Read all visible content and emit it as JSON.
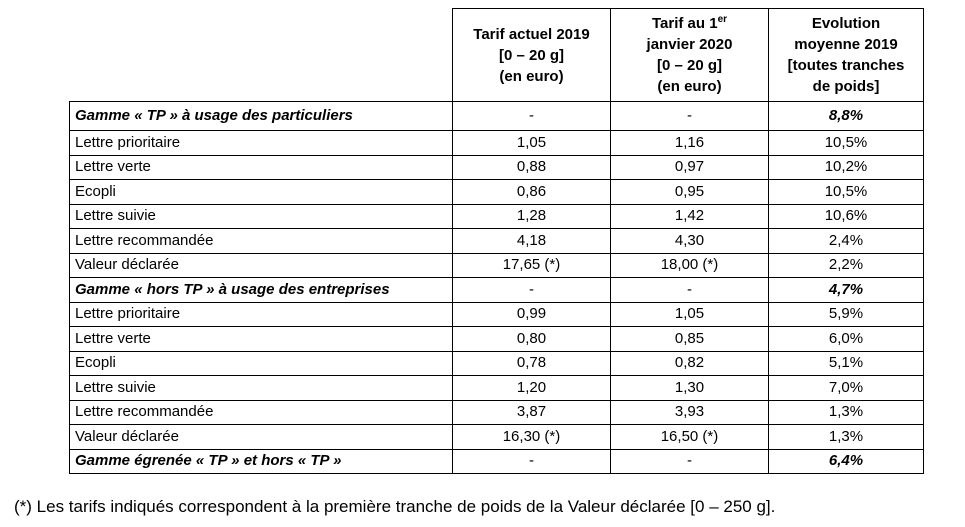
{
  "columns": {
    "col1": [
      "Tarif actuel 2019",
      "[0 – 20 g]",
      "(en euro)"
    ],
    "col2_line1": "Tarif au 1",
    "col2_sup": "er",
    "col2_rest": [
      "janvier 2020",
      "[0 – 20 g]",
      "(en euro)"
    ],
    "col3": [
      "Evolution",
      "moyenne 2019",
      "[toutes tranches",
      "de poids]"
    ]
  },
  "rows": [
    {
      "label": "Gamme « TP » à usage des particuliers",
      "tarif_2019": "-",
      "tarif_2020": "-",
      "evolution": "8,8%",
      "group": true
    },
    {
      "label": "Lettre prioritaire",
      "tarif_2019": "1,05",
      "tarif_2020": "1,16",
      "evolution": "10,5%"
    },
    {
      "label": "Lettre verte",
      "tarif_2019": "0,88",
      "tarif_2020": "0,97",
      "evolution": "10,2%"
    },
    {
      "label": "Ecopli",
      "tarif_2019": "0,86",
      "tarif_2020": "0,95",
      "evolution": "10,5%"
    },
    {
      "label": "Lettre suivie",
      "tarif_2019": "1,28",
      "tarif_2020": "1,42",
      "evolution": "10,6%"
    },
    {
      "label": "Lettre recommandée",
      "tarif_2019": "4,18",
      "tarif_2020": "4,30",
      "evolution": "2,4%"
    },
    {
      "label": "Valeur déclarée",
      "tarif_2019": "17,65 (*)",
      "tarif_2020": "18,00 (*)",
      "evolution": "2,2%"
    },
    {
      "label": "Gamme « hors TP » à usage des entreprises",
      "tarif_2019": "-",
      "tarif_2020": "-",
      "evolution": "4,7%",
      "group": true
    },
    {
      "label": "Lettre prioritaire",
      "tarif_2019": "0,99",
      "tarif_2020": "1,05",
      "evolution": "5,9%"
    },
    {
      "label": "Lettre verte",
      "tarif_2019": "0,80",
      "tarif_2020": "0,85",
      "evolution": "6,0%"
    },
    {
      "label": "Ecopli",
      "tarif_2019": "0,78",
      "tarif_2020": "0,82",
      "evolution": "5,1%"
    },
    {
      "label": "Lettre suivie",
      "tarif_2019": "1,20",
      "tarif_2020": "1,30",
      "evolution": "7,0%"
    },
    {
      "label": "Lettre recommandée",
      "tarif_2019": "3,87",
      "tarif_2020": "3,93",
      "evolution": "1,3%"
    },
    {
      "label": "Valeur déclarée",
      "tarif_2019": "16,30 (*)",
      "tarif_2020": "16,50 (*)",
      "evolution": "1,3%"
    },
    {
      "label": "Gamme égrenée « TP » et hors « TP »",
      "tarif_2019": "-",
      "tarif_2020": "-",
      "evolution": "6,4%",
      "group": true
    }
  ],
  "footnote": "(*) Les tarifs indiqués correspondent à la première tranche de poids de la Valeur déclarée [0 – 250 g]."
}
